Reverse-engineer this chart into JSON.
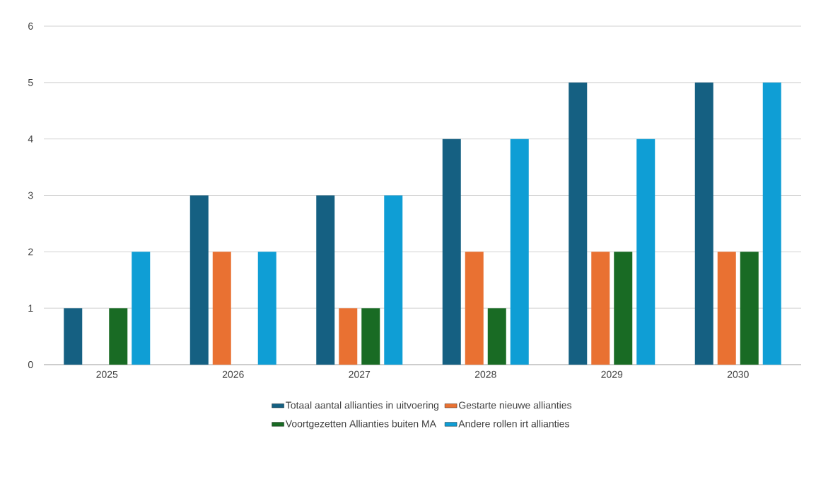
{
  "chart_data": {
    "type": "bar",
    "categories": [
      "2025",
      "2026",
      "2027",
      "2028",
      "2029",
      "2030"
    ],
    "series": [
      {
        "name": "Totaal aantal allianties in uitvoering",
        "color": "#156082",
        "values": [
          1,
          3,
          3,
          4,
          5,
          5
        ]
      },
      {
        "name": "Gestarte nieuwe allianties",
        "color": "#E97132",
        "values": [
          0,
          2,
          1,
          2,
          2,
          2
        ]
      },
      {
        "name": "Voortgezetten Allianties buiten MA",
        "color": "#196B24",
        "values": [
          1,
          0,
          1,
          1,
          2,
          2
        ]
      },
      {
        "name": "Andere rollen irt allianties",
        "color": "#0F9ED5",
        "values": [
          2,
          2,
          3,
          4,
          4,
          5
        ]
      }
    ],
    "ylim": [
      0,
      6
    ],
    "yticks": [
      0,
      1,
      2,
      3,
      4,
      5,
      6
    ],
    "grid": "y",
    "legend": "bottom"
  }
}
